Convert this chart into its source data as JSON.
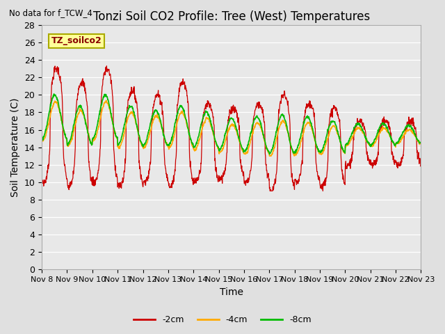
{
  "title": "Tonzi Soil CO2 Profile: Tree (West) Temperatures",
  "subtitle": "No data for f_TCW_4",
  "xlabel": "Time",
  "ylabel": "Soil Temperature (C)",
  "annotation": "TZ_soilco2",
  "ylim": [
    0,
    28
  ],
  "yticks": [
    0,
    2,
    4,
    6,
    8,
    10,
    12,
    14,
    16,
    18,
    20,
    22,
    24,
    26,
    28
  ],
  "xtick_labels": [
    "Nov 8",
    "Nov 9",
    "Nov 10",
    "Nov 11",
    "Nov 12",
    "Nov 13",
    "Nov 14",
    "Nov 15",
    "Nov 16",
    "Nov 17",
    "Nov 18",
    "Nov 19",
    "Nov 20",
    "Nov 21",
    "Nov 22",
    "Nov 23"
  ],
  "line_colors": [
    "#cc0000",
    "#ffaa00",
    "#00bb00"
  ],
  "line_labels": [
    "-2cm",
    "-4cm",
    "-8cm"
  ],
  "fig_bg": "#e0e0e0",
  "plot_bg": "#e8e8e8",
  "grid_color": "#ffffff",
  "title_fontsize": 12,
  "label_fontsize": 10,
  "tick_fontsize": 9,
  "annot_bg": "#ffff99",
  "annot_edge": "#aaaa00",
  "n_days": 15,
  "n_per_day": 96
}
